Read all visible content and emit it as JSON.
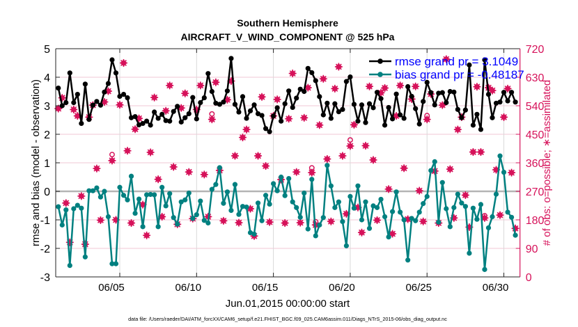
{
  "chart_data": {
    "type": "line",
    "title": "Southern Hemisphere",
    "subtitle": "AIRCRAFT_V_WIND_COMPONENT @ 525 hPa",
    "xlabel": "Jun.01,2015 00:00:00 start",
    "ylabel": "rmse and bias (model - observation)",
    "ylabel_right": "# of obs: o=possible; ∗=assimilated",
    "footer": "data file: /Users/raeder/DAI/ATM_forcXX/CAM6_setup/f.e21.FHIST_BGC.f09_025.CAM6assim.011/Diags_NTrS_2015-06/obs_diag_output.nc",
    "xlim_days": [
      -0.17,
      30.05
    ],
    "x_step_days": 0.25,
    "x_ticks": [
      {
        "day": 4,
        "label": "06/05"
      },
      {
        "day": 9,
        "label": "06/10"
      },
      {
        "day": 14,
        "label": "06/15"
      },
      {
        "day": 19,
        "label": "06/20"
      },
      {
        "day": 24,
        "label": "06/25"
      },
      {
        "day": 29,
        "label": "06/30"
      }
    ],
    "ylim": [
      -3,
      5
    ],
    "y_ticks": [
      "-3",
      "-2",
      "-1",
      "0",
      "1",
      "2",
      "3",
      "4",
      "5"
    ],
    "ylim_right": [
      0,
      720
    ],
    "y_ticks_right": [
      "0",
      "90",
      "180",
      "270",
      "360",
      "450",
      "540",
      "630",
      "720"
    ],
    "grid": true,
    "legend_position": "top-right",
    "colors": {
      "rmse": "#000000",
      "bias": "#008080",
      "obs": "#d6125a",
      "legend_text": "#0000ff",
      "zero_line": "#b4b4b4",
      "grid_h": "#f2c7d6",
      "grid_v": "#d9d9d9"
    },
    "series": [
      {
        "name": "rmse grand pr = 3.1049",
        "axis": "left",
        "values": [
          3.62,
          3.0,
          3.11,
          4.15,
          3.11,
          3.4,
          2.38,
          3.76,
          2.52,
          3.02,
          3.15,
          3.02,
          3.48,
          3.78,
          4.61,
          4.15,
          3.33,
          3.4,
          3.28,
          2.58,
          2.62,
          2.33,
          2.38,
          2.46,
          2.32,
          2.78,
          2.56,
          2.7,
          2.48,
          2.46,
          2.8,
          2.98,
          2.43,
          2.58,
          2.72,
          3.29,
          2.54,
          3.11,
          3.28,
          4.13,
          3.5,
          3.09,
          3.05,
          3.13,
          3.52,
          4.66,
          3.05,
          2.78,
          3.32,
          2.56,
          2.82,
          3.03,
          2.72,
          2.66,
          2.2,
          2.09,
          2.64,
          2.93,
          2.46,
          3.07,
          3.52,
          2.94,
          3.27,
          3.58,
          3.5,
          4.31,
          4.16,
          3.88,
          3.32,
          2.68,
          3.09,
          2.56,
          3.07,
          2.79,
          2.87,
          3.85,
          4.01,
          3.05,
          2.46,
          3.03,
          2.41,
          3.07,
          2.93,
          3.47,
          3.25,
          2.32,
          2.94,
          2.54,
          3.41,
          2.68,
          2.56,
          3.67,
          3.33,
          2.9,
          2.36,
          3.15,
          3.82,
          3.46,
          3.03,
          3.44,
          3.46,
          3.11,
          3.5,
          3.48,
          2.87,
          2.58,
          2.85,
          4.43,
          2.32,
          2.7,
          2.17,
          4.61,
          3.4,
          2.58,
          3.09,
          3.13,
          3.47,
          3.17,
          3.47,
          3.13
        ]
      },
      {
        "name": "bias grand pr = -0.48187",
        "axis": "left",
        "values": [
          -0.54,
          -1.18,
          -0.65,
          -2.6,
          -0.61,
          -0.49,
          -0.59,
          -2.3,
          0.02,
          0.02,
          0.12,
          -0.2,
          0,
          -0.89,
          -2.54,
          -2.54,
          0.14,
          -0.14,
          -0.3,
          0.53,
          -0.77,
          -0.27,
          -1.24,
          -0.12,
          -0.11,
          -0.12,
          -1.24,
          0.14,
          -0.51,
          -0.08,
          -0.92,
          -1.15,
          -0.37,
          -0.3,
          -0.06,
          -0.95,
          -0.82,
          -0.34,
          -1.02,
          -1.11,
          0.07,
          0.24,
          0.83,
          -0.42,
          -0.02,
          -0.67,
          0.24,
          -0.81,
          -0.53,
          -0.55,
          -1.45,
          -1.5,
          -0.41,
          -1.03,
          -0.14,
          -0.45,
          0.27,
          0.02,
          0.5,
          -0.15,
          0.45,
          -0.37,
          -0.57,
          -0.91,
          -0.06,
          -1.32,
          0.42,
          -1.56,
          -1.18,
          -0.92,
          0.91,
          0.19,
          -0.57,
          -0.37,
          -1.06,
          -1.91,
          -0.18,
          -0.59,
          0.19,
          -1.0,
          -0.37,
          -1.3,
          -0.51,
          -0.57,
          -0.28,
          -0.89,
          -1.6,
          -0.71,
          -0.02,
          -0.73,
          -1.0,
          -2.41,
          -0.95,
          -1.03,
          -0.73,
          -0.43,
          -0.18,
          0.73,
          1.04,
          -1.08,
          0.31,
          -0.61,
          -1.24,
          -0.57,
          -0.1,
          -0.41,
          -0.53,
          -2.17,
          -0.59,
          -0.98,
          -0.46,
          -2.74,
          -1.28,
          -0.89,
          -0.1,
          1.24,
          0.67,
          -0.73,
          -0.91,
          -1.54
        ]
      },
      {
        "name": "assimilated",
        "axis": "right",
        "values": [
          531,
          565,
          233,
          109,
          528,
          508,
          255,
          103,
          504,
          542,
          342,
          179,
          552,
          586,
          367,
          180,
          543,
          675,
          398,
          170,
          466,
          500,
          228,
          131,
          393,
          566,
          308,
          190,
          524,
          604,
          347,
          166,
          533,
          579,
          331,
          184,
          528,
          604,
          323,
          190,
          497,
          614,
          336,
          177,
          559,
          618,
          382,
          171,
          440,
          465,
          215,
          129,
          382,
          568,
          350,
          173,
          508,
          560,
          307,
          170,
          499,
          642,
          331,
          171,
          502,
          597,
          329,
          164,
          479,
          625,
          372,
          175,
          594,
          663,
          382,
          199,
          413,
          480,
          219,
          140,
          414,
          601,
          369,
          179,
          581,
          596,
          277,
          136,
          508,
          604,
          343,
          182,
          561,
          601,
          272,
          175,
          497,
          577,
          334,
          170,
          542,
          687,
          340,
          186,
          465,
          504,
          258,
          157,
          394,
          600,
          394,
          186,
          597,
          588,
          338,
          195,
          504,
          594,
          329,
          153
        ]
      },
      {
        "name": "possible",
        "axis": "right",
        "points": [
          [
            14,
            386
          ],
          [
            40,
            514
          ],
          [
            66,
            344
          ],
          [
            67,
            174
          ],
          [
            76,
            432
          ],
          [
            96,
            509
          ],
          [
            111,
            193
          ]
        ]
      }
    ]
  }
}
